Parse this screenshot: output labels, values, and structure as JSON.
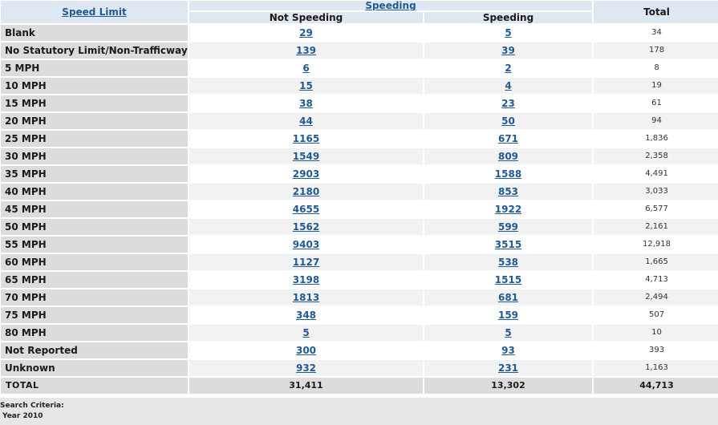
{
  "headers": {
    "speed_limit": "Speed Limit",
    "speeding": "Speeding",
    "total": "Total",
    "not_speeding": "Not Speeding",
    "speeding_sub": "Speeding"
  },
  "rows": [
    {
      "label": "Blank",
      "not_speeding": "29",
      "speeding": "5",
      "total": "34"
    },
    {
      "label": "No Statutory Limit/Non-Trafficway Area",
      "not_speeding": "139",
      "speeding": "39",
      "total": "178"
    },
    {
      "label": "5 MPH",
      "not_speeding": "6",
      "speeding": "2",
      "total": "8"
    },
    {
      "label": "10 MPH",
      "not_speeding": "15",
      "speeding": "4",
      "total": "19"
    },
    {
      "label": "15 MPH",
      "not_speeding": "38",
      "speeding": "23",
      "total": "61"
    },
    {
      "label": "20 MPH",
      "not_speeding": "44",
      "speeding": "50",
      "total": "94"
    },
    {
      "label": "25 MPH",
      "not_speeding": "1165",
      "speeding": "671",
      "total": "1,836"
    },
    {
      "label": "30 MPH",
      "not_speeding": "1549",
      "speeding": "809",
      "total": "2,358"
    },
    {
      "label": "35 MPH",
      "not_speeding": "2903",
      "speeding": "1588",
      "total": "4,491"
    },
    {
      "label": "40 MPH",
      "not_speeding": "2180",
      "speeding": "853",
      "total": "3,033"
    },
    {
      "label": "45 MPH",
      "not_speeding": "4655",
      "speeding": "1922",
      "total": "6,577"
    },
    {
      "label": "50 MPH",
      "not_speeding": "1562",
      "speeding": "599",
      "total": "2,161"
    },
    {
      "label": "55 MPH",
      "not_speeding": "9403",
      "speeding": "3515",
      "total": "12,918"
    },
    {
      "label": "60 MPH",
      "not_speeding": "1127",
      "speeding": "538",
      "total": "1,665"
    },
    {
      "label": "65 MPH",
      "not_speeding": "3198",
      "speeding": "1515",
      "total": "4,713"
    },
    {
      "label": "70 MPH",
      "not_speeding": "1813",
      "speeding": "681",
      "total": "2,494"
    },
    {
      "label": "75 MPH",
      "not_speeding": "348",
      "speeding": "159",
      "total": "507"
    },
    {
      "label": "80 MPH",
      "not_speeding": "5",
      "speeding": "5",
      "total": "10"
    },
    {
      "label": "Not Reported",
      "not_speeding": "300",
      "speeding": "93",
      "total": "393"
    },
    {
      "label": "Unknown",
      "not_speeding": "932",
      "speeding": "231",
      "total": "1,163"
    }
  ],
  "totals": {
    "label": "TOTAL",
    "not_speeding": "31,411",
    "speeding": "13,302",
    "total": "44,713"
  },
  "criteria": {
    "title": "Search Criteria:",
    "year": "Year 2010"
  },
  "colors": {
    "link": "#1f5a95",
    "header_bg": "#dde8f3",
    "label_bg": "#dcdcdc",
    "alt_row_bg": "#f2f2f2"
  }
}
